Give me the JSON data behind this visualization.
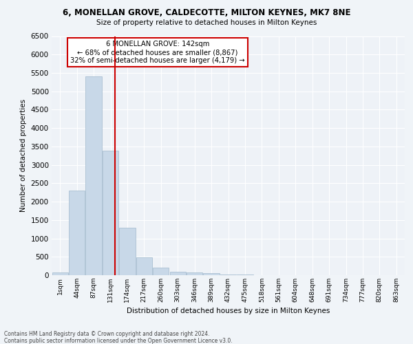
{
  "title1": "6, MONELLAN GROVE, CALDECOTTE, MILTON KEYNES, MK7 8NE",
  "title2": "Size of property relative to detached houses in Milton Keynes",
  "xlabel": "Distribution of detached houses by size in Milton Keynes",
  "ylabel": "Number of detached properties",
  "bin_labels": [
    "1sqm",
    "44sqm",
    "87sqm",
    "131sqm",
    "174sqm",
    "217sqm",
    "260sqm",
    "303sqm",
    "346sqm",
    "389sqm",
    "432sqm",
    "475sqm",
    "518sqm",
    "561sqm",
    "604sqm",
    "648sqm",
    "691sqm",
    "734sqm",
    "777sqm",
    "820sqm",
    "863sqm"
  ],
  "bar_values": [
    80,
    2300,
    5400,
    3380,
    1300,
    480,
    200,
    100,
    70,
    50,
    20,
    10,
    5,
    3,
    2,
    1,
    1,
    1,
    0,
    0,
    0
  ],
  "bar_color": "#c8d8e8",
  "bar_edgecolor": "#a0b8cc",
  "property_label": "6 MONELLAN GROVE: 142sqm",
  "annotation_line1": "← 68% of detached houses are smaller (8,867)",
  "annotation_line2": "32% of semi-detached houses are larger (4,179) →",
  "vline_color": "#cc0000",
  "annotation_box_color": "#ffffff",
  "annotation_box_edgecolor": "#cc0000",
  "footer1": "Contains HM Land Registry data © Crown copyright and database right 2024.",
  "footer2": "Contains public sector information licensed under the Open Government Licence v3.0.",
  "ylim": [
    0,
    6500
  ],
  "yticks": [
    0,
    500,
    1000,
    1500,
    2000,
    2500,
    3000,
    3500,
    4000,
    4500,
    5000,
    5500,
    6000,
    6500
  ],
  "background_color": "#f0f4f8",
  "axes_background": "#eef2f7"
}
